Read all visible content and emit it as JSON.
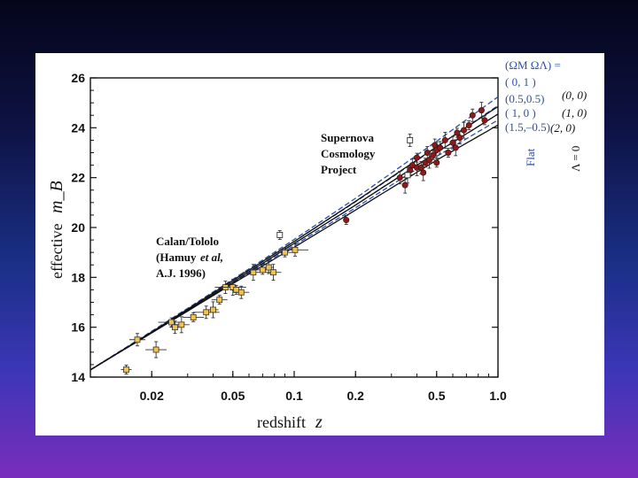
{
  "chart_data": {
    "type": "scatter",
    "title": "",
    "xlabel": "redshift",
    "xlabel_var": "z",
    "ylabel": "effective",
    "ylabel_var": "m_B",
    "xscale": "log",
    "xlim": [
      0.01,
      1.0
    ],
    "ylim": [
      14,
      26
    ],
    "x_ticks": [
      {
        "value": 0.02,
        "label": "0.02"
      },
      {
        "value": 0.05,
        "label": "0.05"
      },
      {
        "value": 0.1,
        "label": "0.1"
      },
      {
        "value": 0.2,
        "label": "0.2"
      },
      {
        "value": 0.5,
        "label": "0.5"
      },
      {
        "value": 1.0,
        "label": "1.0"
      }
    ],
    "y_ticks": [
      {
        "value": 14,
        "label": "14"
      },
      {
        "value": 16,
        "label": "16"
      },
      {
        "value": 18,
        "label": "18"
      },
      {
        "value": 20,
        "label": "20"
      },
      {
        "value": 22,
        "label": "22"
      },
      {
        "value": 24,
        "label": "24"
      },
      {
        "value": 26,
        "label": "26"
      }
    ],
    "annotations": {
      "scp": [
        "Supernova",
        "Cosmology",
        "Project"
      ],
      "calan": [
        "Calan/Tololo",
        "(Hamuy",
        "et al,",
        "A.J. 1996)"
      ]
    },
    "legend": {
      "header": "(ΩM ΩΛ) =",
      "flat_label": "Flat",
      "lambda0_label": "Λ = 0",
      "flat_models": [
        "( 0,   1 )",
        "(0.5,0.5)",
        "( 1,   0 )",
        "(1.5,–0.5)"
      ],
      "lambda0_models": [
        "(0, 0)",
        "(1, 0)",
        "(2, 0)"
      ]
    },
    "series": [
      {
        "name": "Calan/Tololo",
        "color": "#f2c14e",
        "points": [
          {
            "x": 0.015,
            "y": 14.3
          },
          {
            "x": 0.017,
            "y": 15.5
          },
          {
            "x": 0.021,
            "y": 15.1
          },
          {
            "x": 0.025,
            "y": 16.2
          },
          {
            "x": 0.026,
            "y": 16.0
          },
          {
            "x": 0.028,
            "y": 16.1
          },
          {
            "x": 0.032,
            "y": 16.4
          },
          {
            "x": 0.037,
            "y": 16.6
          },
          {
            "x": 0.04,
            "y": 16.7
          },
          {
            "x": 0.043,
            "y": 17.1
          },
          {
            "x": 0.046,
            "y": 17.6
          },
          {
            "x": 0.05,
            "y": 17.6
          },
          {
            "x": 0.052,
            "y": 17.5
          },
          {
            "x": 0.055,
            "y": 17.4
          },
          {
            "x": 0.063,
            "y": 18.2
          },
          {
            "x": 0.07,
            "y": 18.3
          },
          {
            "x": 0.075,
            "y": 18.4
          },
          {
            "x": 0.079,
            "y": 18.2
          },
          {
            "x": 0.09,
            "y": 19.0
          },
          {
            "x": 0.101,
            "y": 19.1
          }
        ]
      },
      {
        "name": "Supernova Cosmology Project",
        "color": "#8b1a1a",
        "points": [
          {
            "x": 0.18,
            "y": 20.3
          },
          {
            "x": 0.33,
            "y": 22.0
          },
          {
            "x": 0.35,
            "y": 21.7
          },
          {
            "x": 0.37,
            "y": 22.3
          },
          {
            "x": 0.38,
            "y": 22.5
          },
          {
            "x": 0.4,
            "y": 22.4
          },
          {
            "x": 0.4,
            "y": 22.8
          },
          {
            "x": 0.42,
            "y": 22.4
          },
          {
            "x": 0.43,
            "y": 22.2
          },
          {
            "x": 0.44,
            "y": 22.6
          },
          {
            "x": 0.45,
            "y": 23.0
          },
          {
            "x": 0.46,
            "y": 22.7
          },
          {
            "x": 0.48,
            "y": 22.9
          },
          {
            "x": 0.49,
            "y": 23.3
          },
          {
            "x": 0.5,
            "y": 23.1
          },
          {
            "x": 0.5,
            "y": 22.6
          },
          {
            "x": 0.52,
            "y": 23.2
          },
          {
            "x": 0.55,
            "y": 23.5
          },
          {
            "x": 0.57,
            "y": 23.0
          },
          {
            "x": 0.6,
            "y": 23.4
          },
          {
            "x": 0.62,
            "y": 23.2
          },
          {
            "x": 0.63,
            "y": 23.8
          },
          {
            "x": 0.65,
            "y": 23.6
          },
          {
            "x": 0.68,
            "y": 23.9
          },
          {
            "x": 0.72,
            "y": 24.1
          },
          {
            "x": 0.75,
            "y": 24.5
          },
          {
            "x": 0.83,
            "y": 24.7
          },
          {
            "x": 0.86,
            "y": 24.3
          }
        ]
      },
      {
        "name": "open markers",
        "color": "#ffffff",
        "points": [
          {
            "x": 0.085,
            "y": 19.7
          },
          {
            "x": 0.37,
            "y": 23.5
          },
          {
            "x": 0.36,
            "y": 22.1
          }
        ]
      }
    ],
    "model_curves": {
      "flat": [
        {
          "label": "( 0, 1 )",
          "values": [
            [
              0.01,
              14.29
            ],
            [
              0.02,
              15.84
            ],
            [
              0.05,
              17.92
            ],
            [
              0.1,
              19.52
            ],
            [
              0.2,
              21.17
            ],
            [
              0.5,
              23.46
            ],
            [
              1.0,
              25.24
            ]
          ]
        },
        {
          "label": "(0.5,0.5)",
          "values": [
            [
              0.01,
              14.29
            ],
            [
              0.02,
              15.81
            ],
            [
              0.05,
              17.87
            ],
            [
              0.1,
              19.44
            ],
            [
              0.2,
              21.03
            ],
            [
              0.5,
              23.22
            ],
            [
              1.0,
              24.89
            ]
          ]
        },
        {
          "label": "( 1, 0 )",
          "values": [
            [
              0.01,
              14.29
            ],
            [
              0.02,
              15.79
            ],
            [
              0.05,
              17.81
            ],
            [
              0.1,
              19.36
            ],
            [
              0.2,
              20.9
            ],
            [
              0.5,
              23.01
            ],
            [
              1.0,
              24.55
            ]
          ]
        },
        {
          "label": "(1.5,-0.5)",
          "values": [
            [
              0.01,
              14.29
            ],
            [
              0.02,
              15.77
            ],
            [
              0.05,
              17.78
            ],
            [
              0.1,
              19.28
            ],
            [
              0.2,
              20.79
            ],
            [
              0.5,
              22.85
            ],
            [
              1.0,
              24.31
            ]
          ]
        }
      ],
      "lambda0": [
        {
          "label": "(0, 0)",
          "values": [
            [
              0.01,
              14.29
            ],
            [
              0.02,
              15.81
            ],
            [
              0.05,
              17.88
            ],
            [
              0.1,
              19.44
            ],
            [
              0.2,
              21.05
            ],
            [
              0.5,
              23.24
            ],
            [
              1.0,
              24.85
            ]
          ]
        },
        {
          "label": "(1, 0)",
          "values": [
            [
              0.01,
              14.29
            ],
            [
              0.02,
              15.79
            ],
            [
              0.05,
              17.81
            ],
            [
              0.1,
              19.36
            ],
            [
              0.2,
              20.9
            ],
            [
              0.5,
              23.01
            ],
            [
              1.0,
              24.55
            ]
          ]
        },
        {
          "label": "(2, 0)",
          "values": [
            [
              0.01,
              14.29
            ],
            [
              0.02,
              15.77
            ],
            [
              0.05,
              17.75
            ],
            [
              0.1,
              19.21
            ],
            [
              0.2,
              20.7
            ],
            [
              0.5,
              22.7
            ],
            [
              1.0,
              24.11
            ]
          ]
        }
      ]
    },
    "grid": false
  }
}
